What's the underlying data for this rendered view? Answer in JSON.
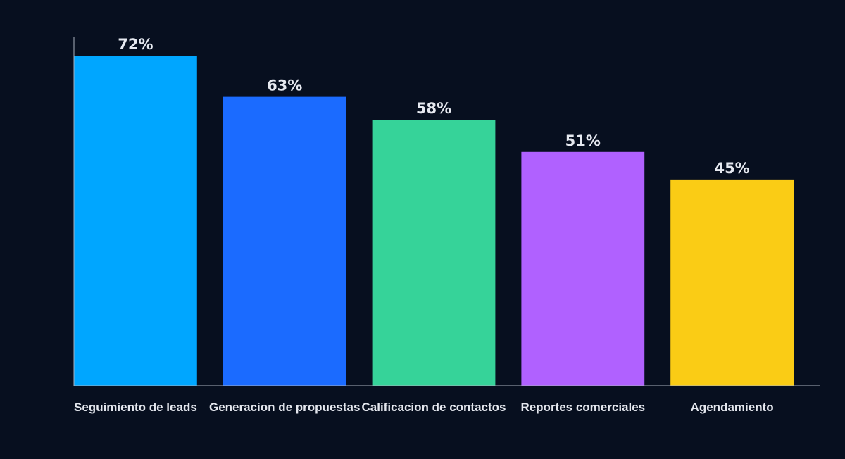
{
  "chart_data": {
    "type": "bar",
    "title": "",
    "xlabel": "",
    "ylabel": "",
    "ylim": [
      0,
      72
    ],
    "grid": false,
    "legend": "none",
    "categories": [
      "Seguimiento de leads",
      "Generacion de propuestas",
      "Calificacion de contactos",
      "Reportes comerciales",
      "Agendamiento"
    ],
    "values": [
      72,
      63,
      58,
      51,
      45
    ],
    "value_labels": [
      "72%",
      "63%",
      "58%",
      "51%",
      "45%"
    ],
    "colors": [
      "#00a6ff",
      "#1b6bff",
      "#36d399",
      "#b061ff",
      "#facc15"
    ],
    "background": "#070f1f"
  }
}
